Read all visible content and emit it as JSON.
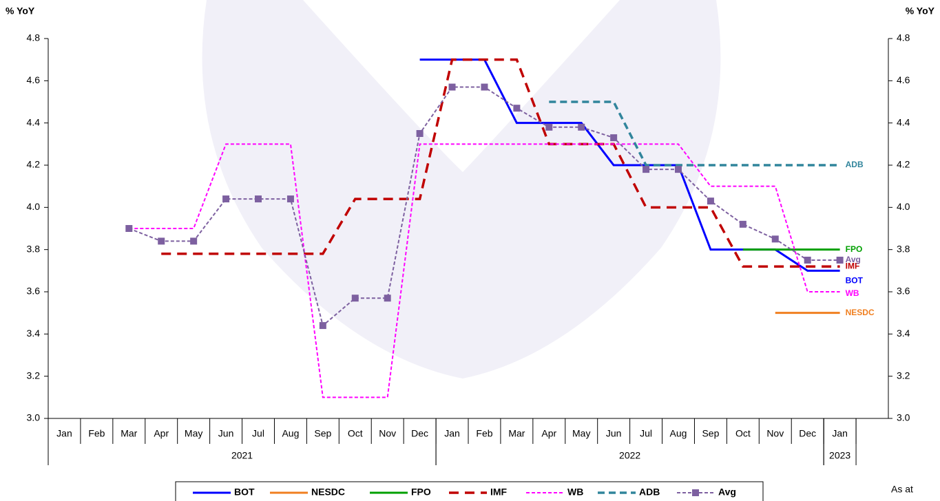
{
  "chart_data": {
    "type": "line",
    "y_label": "% YoY",
    "y2_label": "% YoY",
    "note": "As at",
    "categories": [
      "Jan",
      "Feb",
      "Mar",
      "Apr",
      "May",
      "Jun",
      "Jul",
      "Aug",
      "Sep",
      "Oct",
      "Nov",
      "Dec",
      "Jan",
      "Feb",
      "Mar",
      "Apr",
      "May",
      "Jun",
      "Jul",
      "Aug",
      "Sep",
      "Oct",
      "Nov",
      "Dec",
      "Jan",
      null
    ],
    "year_groups": [
      {
        "label": "2021",
        "count": 12
      },
      {
        "label": "2022",
        "count": 12
      },
      {
        "label": "2023",
        "count": 1
      }
    ],
    "ylim": [
      3.0,
      4.8
    ],
    "yticks": [
      {
        "value": 3.0,
        "label": "3.0"
      },
      3.2,
      3.4,
      3.6,
      3.8,
      {
        "value": 4.0,
        "label": "4.0"
      },
      4.2,
      4.4,
      4.6,
      4.8
    ],
    "series": [
      {
        "name": "BOT",
        "color": "#0000ff",
        "style": "solid",
        "values": [
          null,
          null,
          null,
          null,
          null,
          null,
          null,
          null,
          null,
          null,
          null,
          4.7,
          4.7,
          4.7,
          4.4,
          4.4,
          4.4,
          4.2,
          4.2,
          4.2,
          3.8,
          3.8,
          3.8,
          3.7,
          3.7,
          null
        ]
      },
      {
        "name": "NESDC",
        "color": "#f07f20",
        "style": "solid",
        "values": [
          null,
          null,
          null,
          null,
          null,
          null,
          null,
          null,
          null,
          null,
          null,
          null,
          null,
          null,
          null,
          null,
          null,
          null,
          null,
          null,
          null,
          null,
          3.5,
          3.5,
          3.5,
          null
        ]
      },
      {
        "name": "FPO",
        "color": "#00a000",
        "style": "solid",
        "values": [
          null,
          null,
          null,
          null,
          null,
          null,
          null,
          null,
          null,
          null,
          null,
          null,
          null,
          null,
          null,
          null,
          null,
          null,
          null,
          null,
          null,
          3.8,
          3.8,
          3.8,
          3.8,
          null
        ]
      },
      {
        "name": "IMF",
        "color": "#c00000",
        "style": "long-dash",
        "values": [
          null,
          null,
          null,
          3.78,
          3.78,
          3.78,
          3.78,
          3.78,
          3.78,
          4.04,
          4.04,
          4.04,
          4.7,
          4.7,
          4.7,
          4.3,
          4.3,
          4.3,
          4.0,
          4.0,
          4.0,
          3.72,
          3.72,
          3.72,
          3.72,
          null
        ]
      },
      {
        "name": "WB",
        "color": "#ff00ff",
        "style": "short-dash",
        "values": [
          null,
          null,
          3.9,
          3.9,
          3.9,
          4.3,
          4.3,
          4.3,
          3.1,
          3.1,
          3.1,
          4.3,
          4.3,
          4.3,
          4.3,
          4.3,
          4.3,
          4.3,
          4.3,
          4.3,
          4.1,
          4.1,
          4.1,
          3.6,
          3.6,
          null
        ]
      },
      {
        "name": "ADB",
        "color": "#31859c",
        "style": "dash",
        "values": [
          null,
          null,
          null,
          null,
          null,
          null,
          null,
          null,
          null,
          null,
          null,
          null,
          null,
          null,
          null,
          4.5,
          4.5,
          4.5,
          4.2,
          4.2,
          4.2,
          4.2,
          4.2,
          4.2,
          4.2,
          null
        ]
      },
      {
        "name": "Avg",
        "color": "#7d60a0",
        "style": "marker",
        "values": [
          null,
          null,
          3.9,
          3.84,
          3.84,
          4.04,
          4.04,
          4.04,
          3.44,
          3.57,
          3.57,
          4.35,
          4.57,
          4.57,
          4.47,
          4.38,
          4.38,
          4.33,
          4.18,
          4.18,
          4.03,
          3.92,
          3.85,
          3.75,
          3.75,
          null
        ]
      }
    ]
  }
}
